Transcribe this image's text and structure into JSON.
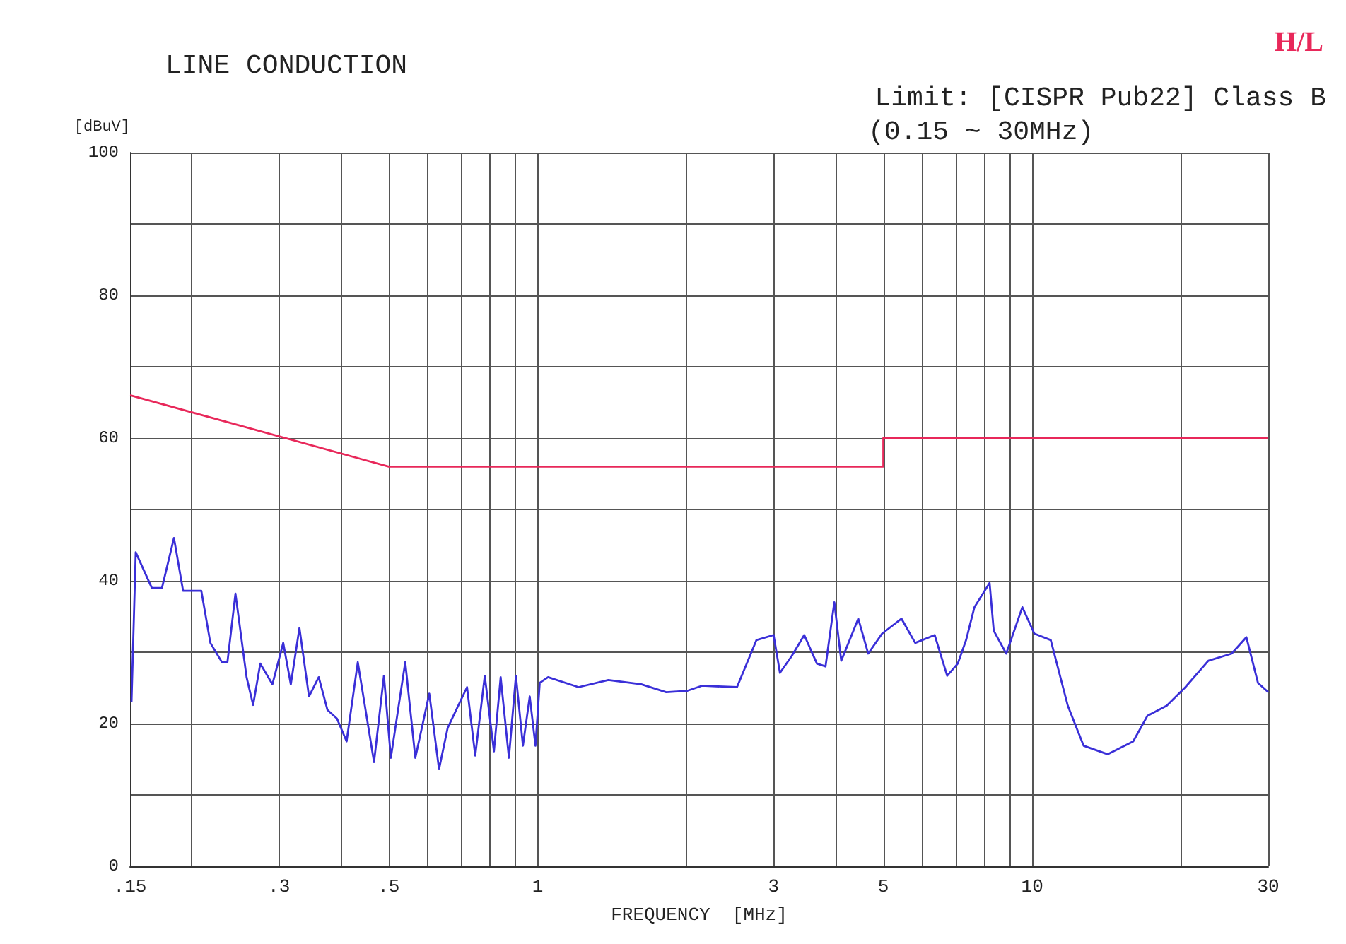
{
  "chart_data": {
    "type": "line",
    "title": "LINE CONDUCTION",
    "subtitle": "Limit: [CISPR Pub22] Class B",
    "annotations": [
      "(0.15 ~ 30MHz)",
      "H/L"
    ],
    "xlabel": "FREQUENCY  [MHz]",
    "ylabel": "[dBuV]",
    "log": "x",
    "grid": true,
    "marker": "none",
    "line_style": "solid",
    "xlim": [
      0.15,
      30
    ],
    "xticks": [
      {
        "value": 0.15,
        "label": ".15"
      },
      {
        "value": 0.2,
        "label": null
      },
      {
        "value": 0.3,
        "label": ".3"
      },
      {
        "value": 0.4,
        "label": null
      },
      {
        "value": 0.5,
        "label": ".5"
      },
      {
        "value": 0.6,
        "label": null
      },
      {
        "value": 0.7,
        "label": null
      },
      {
        "value": 0.8,
        "label": null
      },
      {
        "value": 0.9,
        "label": null
      },
      1,
      {
        "value": 2,
        "label": null
      },
      3,
      {
        "value": 4,
        "label": null
      },
      5,
      {
        "value": 6,
        "label": null
      },
      {
        "value": 7,
        "label": null
      },
      {
        "value": 8,
        "label": null
      },
      {
        "value": 9,
        "label": null
      },
      10,
      {
        "value": 20,
        "label": null
      },
      30
    ],
    "ylim": [
      0,
      100
    ],
    "yticks": [
      0,
      {
        "value": 10,
        "label": null
      },
      20,
      {
        "value": 30,
        "label": null
      },
      40,
      {
        "value": 50,
        "label": null
      },
      60,
      {
        "value": 70,
        "label": null
      },
      80,
      {
        "value": 90,
        "label": null
      },
      100
    ],
    "series": [
      {
        "color": "#e8285a",
        "x": [
          0.15,
          0.5,
          5,
          5,
          30
        ],
        "values": [
          66,
          56,
          56,
          60,
          60
        ]
      },
      {
        "color": "#3a2fd8",
        "x": [
          0.151,
          0.154,
          0.166,
          0.174,
          0.184,
          0.192,
          0.209,
          0.218,
          0.23,
          0.236,
          0.245,
          0.258,
          0.266,
          0.275,
          0.291,
          0.306,
          0.317,
          0.33,
          0.345,
          0.361,
          0.376,
          0.393,
          0.411,
          0.433,
          0.467,
          0.489,
          0.505,
          0.54,
          0.566,
          0.604,
          0.632,
          0.658,
          0.72,
          0.748,
          0.782,
          0.816,
          0.842,
          0.875,
          0.904,
          0.934,
          0.964,
          0.99,
          1.01,
          1.05,
          1.21,
          1.39,
          1.62,
          1.82,
          2.01,
          2.15,
          2.53,
          2.77,
          3.0,
          3.09,
          3.26,
          3.46,
          3.67,
          3.82,
          3.98,
          4.11,
          4.45,
          4.66,
          4.97,
          5.44,
          5.8,
          6.35,
          6.73,
          7.07,
          7.35,
          7.64,
          8.2,
          8.36,
          8.86,
          9.55,
          10.1,
          10.9,
          11.8,
          12.7,
          14.2,
          16,
          17.1,
          18.7,
          20.4,
          22.7,
          25.3,
          27.1,
          28.6,
          30
        ],
        "values": [
          23,
          44,
          39,
          39,
          46,
          38.6,
          38.6,
          31.3,
          28.6,
          28.6,
          38.2,
          26.5,
          22.6,
          28.4,
          25.5,
          31.3,
          25.5,
          33.4,
          23.8,
          26.5,
          21.9,
          20.7,
          17.5,
          28.6,
          14.6,
          26.7,
          15.2,
          28.6,
          15.2,
          24.2,
          13.6,
          19.4,
          25.1,
          15.5,
          26.7,
          16.1,
          26.5,
          15.2,
          26.7,
          16.9,
          23.8,
          16.9,
          25.7,
          26.5,
          25.1,
          26.1,
          25.5,
          24.4,
          24.6,
          25.3,
          25.1,
          31.7,
          32.4,
          27.1,
          29.4,
          32.4,
          28.4,
          28,
          37,
          28.8,
          34.7,
          29.8,
          32.6,
          34.7,
          31.3,
          32.4,
          26.7,
          28.4,
          31.7,
          36.3,
          39.7,
          33,
          29.8,
          36.3,
          32.6,
          31.7,
          22.5,
          16.9,
          15.7,
          17.5,
          21.1,
          22.5,
          25.1,
          28.8,
          29.8,
          32.1,
          25.7,
          24.4
        ]
      }
    ]
  }
}
